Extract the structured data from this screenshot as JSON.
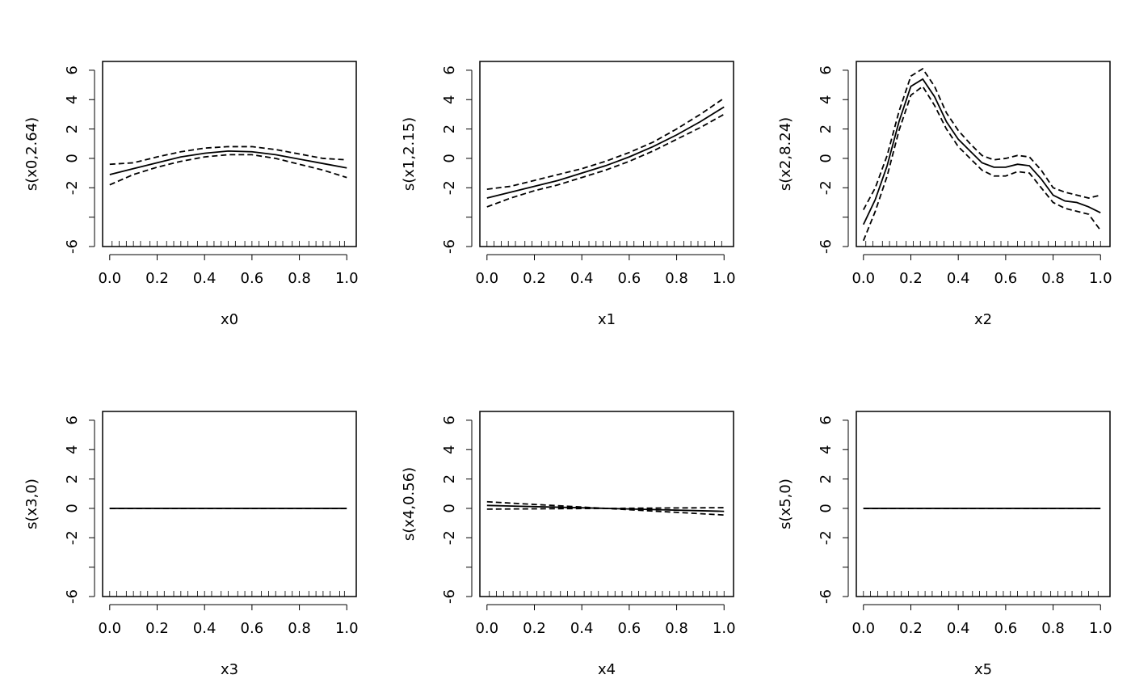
{
  "chart_data": [
    {
      "type": "line",
      "xlabel": "x0",
      "ylabel": "s(x0,2.64)",
      "x": [
        0,
        0.1,
        0.2,
        0.3,
        0.4,
        0.5,
        0.6,
        0.7,
        0.8,
        0.9,
        1
      ],
      "fit": [
        -1.1,
        -0.7,
        -0.3,
        0.1,
        0.35,
        0.5,
        0.45,
        0.25,
        -0.05,
        -0.35,
        -0.65
      ],
      "upper": [
        -0.4,
        -0.3,
        0.1,
        0.45,
        0.7,
        0.8,
        0.8,
        0.6,
        0.3,
        0,
        -0.1
      ],
      "lower": [
        -1.8,
        -1.1,
        -0.6,
        -0.2,
        0.1,
        0.25,
        0.25,
        0,
        -0.4,
        -0.8,
        -1.3
      ],
      "rug": [
        0.01,
        0.04,
        0.07,
        0.1,
        0.13,
        0.17,
        0.2,
        0.24,
        0.27,
        0.3,
        0.33,
        0.37,
        0.41,
        0.44,
        0.47,
        0.5,
        0.53,
        0.57,
        0.6,
        0.63,
        0.67,
        0.7,
        0.73,
        0.77,
        0.8,
        0.84,
        0.87,
        0.9,
        0.93,
        0.97,
        0.99
      ],
      "xlim": [
        -0.03,
        1.04
      ],
      "ylim": [
        -6,
        6.6
      ],
      "xticks": [
        {
          "value": 0,
          "label": "0.0"
        },
        0.2,
        0.4,
        0.6,
        0.8,
        {
          "value": 1,
          "label": "1.0"
        }
      ],
      "yticks": [
        -6,
        {
          "value": -4,
          "label": null
        },
        -2,
        0,
        2,
        4,
        6
      ]
    },
    {
      "type": "line",
      "xlabel": "x1",
      "ylabel": "s(x1,2.15)",
      "x": [
        0,
        0.1,
        0.2,
        0.3,
        0.4,
        0.5,
        0.6,
        0.7,
        0.8,
        0.9,
        1
      ],
      "fit": [
        -2.7,
        -2.3,
        -1.9,
        -1.5,
        -1,
        -0.5,
        0.1,
        0.8,
        1.6,
        2.5,
        3.5
      ],
      "upper": [
        -2.1,
        -1.9,
        -1.5,
        -1.1,
        -0.7,
        -0.2,
        0.4,
        1.1,
        2,
        3,
        4.1
      ],
      "lower": [
        -3.3,
        -2.7,
        -2.2,
        -1.8,
        -1.3,
        -0.8,
        -0.2,
        0.5,
        1.3,
        2.1,
        3
      ],
      "rug": [
        0.0,
        0.03,
        0.06,
        0.09,
        0.12,
        0.16,
        0.19,
        0.23,
        0.26,
        0.29,
        0.32,
        0.36,
        0.39,
        0.43,
        0.46,
        0.49,
        0.52,
        0.56,
        0.59,
        0.62,
        0.66,
        0.69,
        0.72,
        0.76,
        0.79,
        0.83,
        0.86,
        0.89,
        0.92,
        0.96,
        0.99
      ],
      "xlim": [
        -0.03,
        1.04
      ],
      "ylim": [
        -6,
        6.6
      ],
      "xticks": [
        {
          "value": 0,
          "label": "0.0"
        },
        0.2,
        0.4,
        0.6,
        0.8,
        {
          "value": 1,
          "label": "1.0"
        }
      ],
      "yticks": [
        -6,
        {
          "value": -4,
          "label": null
        },
        -2,
        0,
        2,
        4,
        6
      ]
    },
    {
      "type": "line",
      "xlabel": "x2",
      "ylabel": "s(x2,8.24)",
      "x": [
        0,
        0.05,
        0.1,
        0.15,
        0.2,
        0.25,
        0.3,
        0.35,
        0.4,
        0.45,
        0.5,
        0.55,
        0.6,
        0.65,
        0.7,
        0.75,
        0.8,
        0.85,
        0.9,
        0.95,
        1
      ],
      "fit": [
        -4.5,
        -2.8,
        -0.5,
        2.5,
        4.9,
        5.4,
        4.2,
        2.5,
        1.3,
        0.5,
        -0.3,
        -0.6,
        -0.6,
        -0.4,
        -0.5,
        -1.4,
        -2.5,
        -2.9,
        -3,
        -3.3,
        -3.7
      ],
      "upper": [
        -3.5,
        -2,
        0.2,
        3.2,
        5.6,
        6.1,
        4.9,
        3.1,
        1.9,
        1,
        0.2,
        -0.1,
        0,
        0.2,
        0.1,
        -0.8,
        -2,
        -2.3,
        -2.5,
        -2.7,
        -2.5
      ],
      "lower": [
        -5.6,
        -3.6,
        -1.2,
        1.9,
        4.3,
        4.9,
        3.6,
        2,
        0.8,
        0,
        -0.8,
        -1.2,
        -1.2,
        -0.9,
        -1,
        -2,
        -3,
        -3.4,
        -3.6,
        -3.8,
        -4.9
      ],
      "rug": [
        0.01,
        0.04,
        0.08,
        0.11,
        0.14,
        0.18,
        0.21,
        0.24,
        0.28,
        0.31,
        0.34,
        0.38,
        0.41,
        0.45,
        0.48,
        0.51,
        0.55,
        0.58,
        0.61,
        0.65,
        0.68,
        0.71,
        0.74,
        0.78,
        0.81,
        0.85,
        0.88,
        0.91,
        0.94,
        0.97,
        1.0
      ],
      "xlim": [
        -0.03,
        1.04
      ],
      "ylim": [
        -6,
        6.6
      ],
      "xticks": [
        {
          "value": 0,
          "label": "0.0"
        },
        0.2,
        0.4,
        0.6,
        0.8,
        {
          "value": 1,
          "label": "1.0"
        }
      ],
      "yticks": [
        -6,
        {
          "value": -4,
          "label": null
        },
        -2,
        0,
        2,
        4,
        6
      ]
    },
    {
      "type": "line",
      "xlabel": "x3",
      "ylabel": "s(x3,0)",
      "x": [
        0,
        1
      ],
      "fit": [
        0,
        0
      ],
      "upper": [
        0,
        0
      ],
      "lower": [
        0,
        0
      ],
      "rug": [
        0.0,
        0.03,
        0.07,
        0.1,
        0.13,
        0.16,
        0.2,
        0.23,
        0.27,
        0.3,
        0.33,
        0.37,
        0.4,
        0.43,
        0.47,
        0.5,
        0.54,
        0.57,
        0.6,
        0.64,
        0.67,
        0.7,
        0.74,
        0.77,
        0.8,
        0.84,
        0.87,
        0.9,
        0.93,
        0.97,
        0.99
      ],
      "xlim": [
        -0.03,
        1.04
      ],
      "ylim": [
        -6,
        6.6
      ],
      "xticks": [
        {
          "value": 0,
          "label": "0.0"
        },
        0.2,
        0.4,
        0.6,
        0.8,
        {
          "value": 1,
          "label": "1.0"
        }
      ],
      "yticks": [
        -6,
        {
          "value": -4,
          "label": null
        },
        -2,
        0,
        2,
        4,
        6
      ]
    },
    {
      "type": "line",
      "xlabel": "x4",
      "ylabel": "s(x4,0.56)",
      "x": [
        0,
        0.5,
        1
      ],
      "fit": [
        0.2,
        0,
        -0.2
      ],
      "upper": [
        0.45,
        0,
        0.05
      ],
      "lower": [
        -0.05,
        0,
        -0.45
      ],
      "rug": [
        0.01,
        0.04,
        0.07,
        0.11,
        0.14,
        0.17,
        0.21,
        0.24,
        0.27,
        0.31,
        0.34,
        0.37,
        0.41,
        0.44,
        0.47,
        0.51,
        0.54,
        0.57,
        0.61,
        0.64,
        0.67,
        0.71,
        0.74,
        0.77,
        0.81,
        0.84,
        0.87,
        0.91,
        0.94,
        0.97,
        1.0
      ],
      "xlim": [
        -0.03,
        1.04
      ],
      "ylim": [
        -6,
        6.6
      ],
      "xticks": [
        {
          "value": 0,
          "label": "0.0"
        },
        0.2,
        0.4,
        0.6,
        0.8,
        {
          "value": 1,
          "label": "1.0"
        }
      ],
      "yticks": [
        -6,
        {
          "value": -4,
          "label": null
        },
        -2,
        0,
        2,
        4,
        6
      ]
    },
    {
      "type": "line",
      "xlabel": "x5",
      "ylabel": "s(x5,0)",
      "x": [
        0,
        1
      ],
      "fit": [
        0,
        0
      ],
      "upper": [
        0,
        0
      ],
      "lower": [
        0,
        0
      ],
      "rug": [
        0.0,
        0.03,
        0.06,
        0.1,
        0.13,
        0.16,
        0.19,
        0.23,
        0.26,
        0.29,
        0.33,
        0.36,
        0.39,
        0.42,
        0.46,
        0.49,
        0.52,
        0.56,
        0.59,
        0.62,
        0.65,
        0.69,
        0.72,
        0.75,
        0.79,
        0.82,
        0.85,
        0.88,
        0.92,
        0.95,
        0.99
      ],
      "xlim": [
        -0.03,
        1.04
      ],
      "ylim": [
        -6,
        6.6
      ],
      "xticks": [
        {
          "value": 0,
          "label": "0.0"
        },
        0.2,
        0.4,
        0.6,
        0.8,
        {
          "value": 1,
          "label": "1.0"
        }
      ],
      "yticks": [
        -6,
        {
          "value": -4,
          "label": null
        },
        -2,
        0,
        2,
        4,
        6
      ]
    }
  ]
}
